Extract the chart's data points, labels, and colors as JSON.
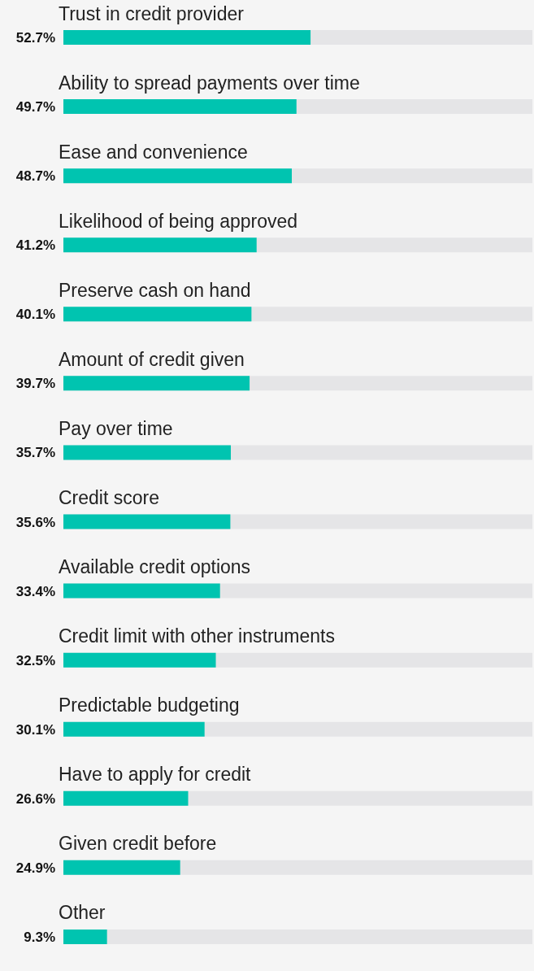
{
  "chart_data": {
    "type": "bar",
    "orientation": "horizontal",
    "categories": [
      "Trust in credit provider",
      "Ability to spread payments over time",
      "Ease and convenience",
      "Likelihood of being approved",
      "Preserve cash on hand",
      "Amount of credit given",
      "Pay over time",
      "Credit score",
      "Available credit options",
      "Credit limit with other instruments",
      "Predictable budgeting",
      "Have to apply for credit",
      "Given credit before",
      "Other"
    ],
    "values": [
      52.7,
      49.7,
      48.7,
      41.2,
      40.1,
      39.7,
      35.7,
      35.6,
      33.4,
      32.5,
      30.1,
      26.6,
      24.9,
      9.3
    ],
    "value_labels": [
      "52.7%",
      "49.7%",
      "48.7%",
      "41.2%",
      "40.1%",
      "39.7%",
      "35.7%",
      "35.6%",
      "33.4%",
      "32.5%",
      "30.1%",
      "26.6%",
      "24.9%",
      "9.3%"
    ],
    "color": "#00c4b0",
    "xlim": [
      0,
      100
    ]
  }
}
